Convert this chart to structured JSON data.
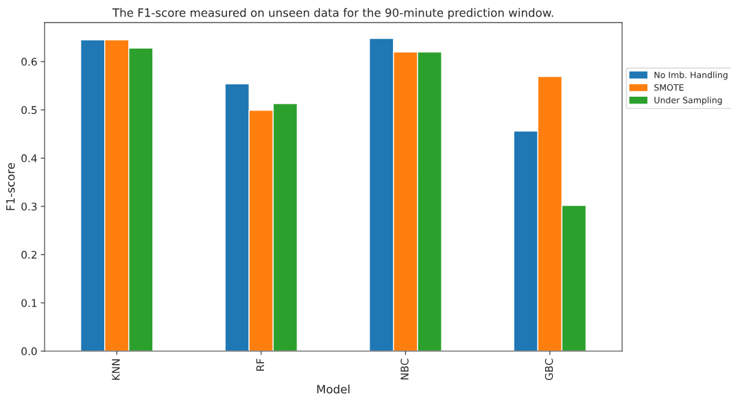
{
  "chart_data": {
    "type": "bar",
    "title": "The F1-score measured on unseen data for the 90-minute prediction window.",
    "xlabel": "Model",
    "ylabel": "F1-score",
    "categories": [
      "KNN",
      "RF",
      "NBC",
      "GBC"
    ],
    "series": [
      {
        "name": "No Imb. Handling",
        "color": "#1f77b4",
        "values": [
          0.645,
          0.554,
          0.648,
          0.456
        ]
      },
      {
        "name": "SMOTE",
        "color": "#ff7f0e",
        "values": [
          0.645,
          0.499,
          0.62,
          0.569
        ]
      },
      {
        "name": "Under Sampling",
        "color": "#2ca02c",
        "values": [
          0.628,
          0.513,
          0.62,
          0.302
        ]
      }
    ],
    "ylim": [
      0,
      0.681
    ],
    "yticks": [
      {
        "value": 0,
        "label": "0.0"
      },
      0.1,
      0.2,
      0.3,
      0.4,
      0.5,
      0.6
    ],
    "grid": false,
    "legend": "right"
  }
}
